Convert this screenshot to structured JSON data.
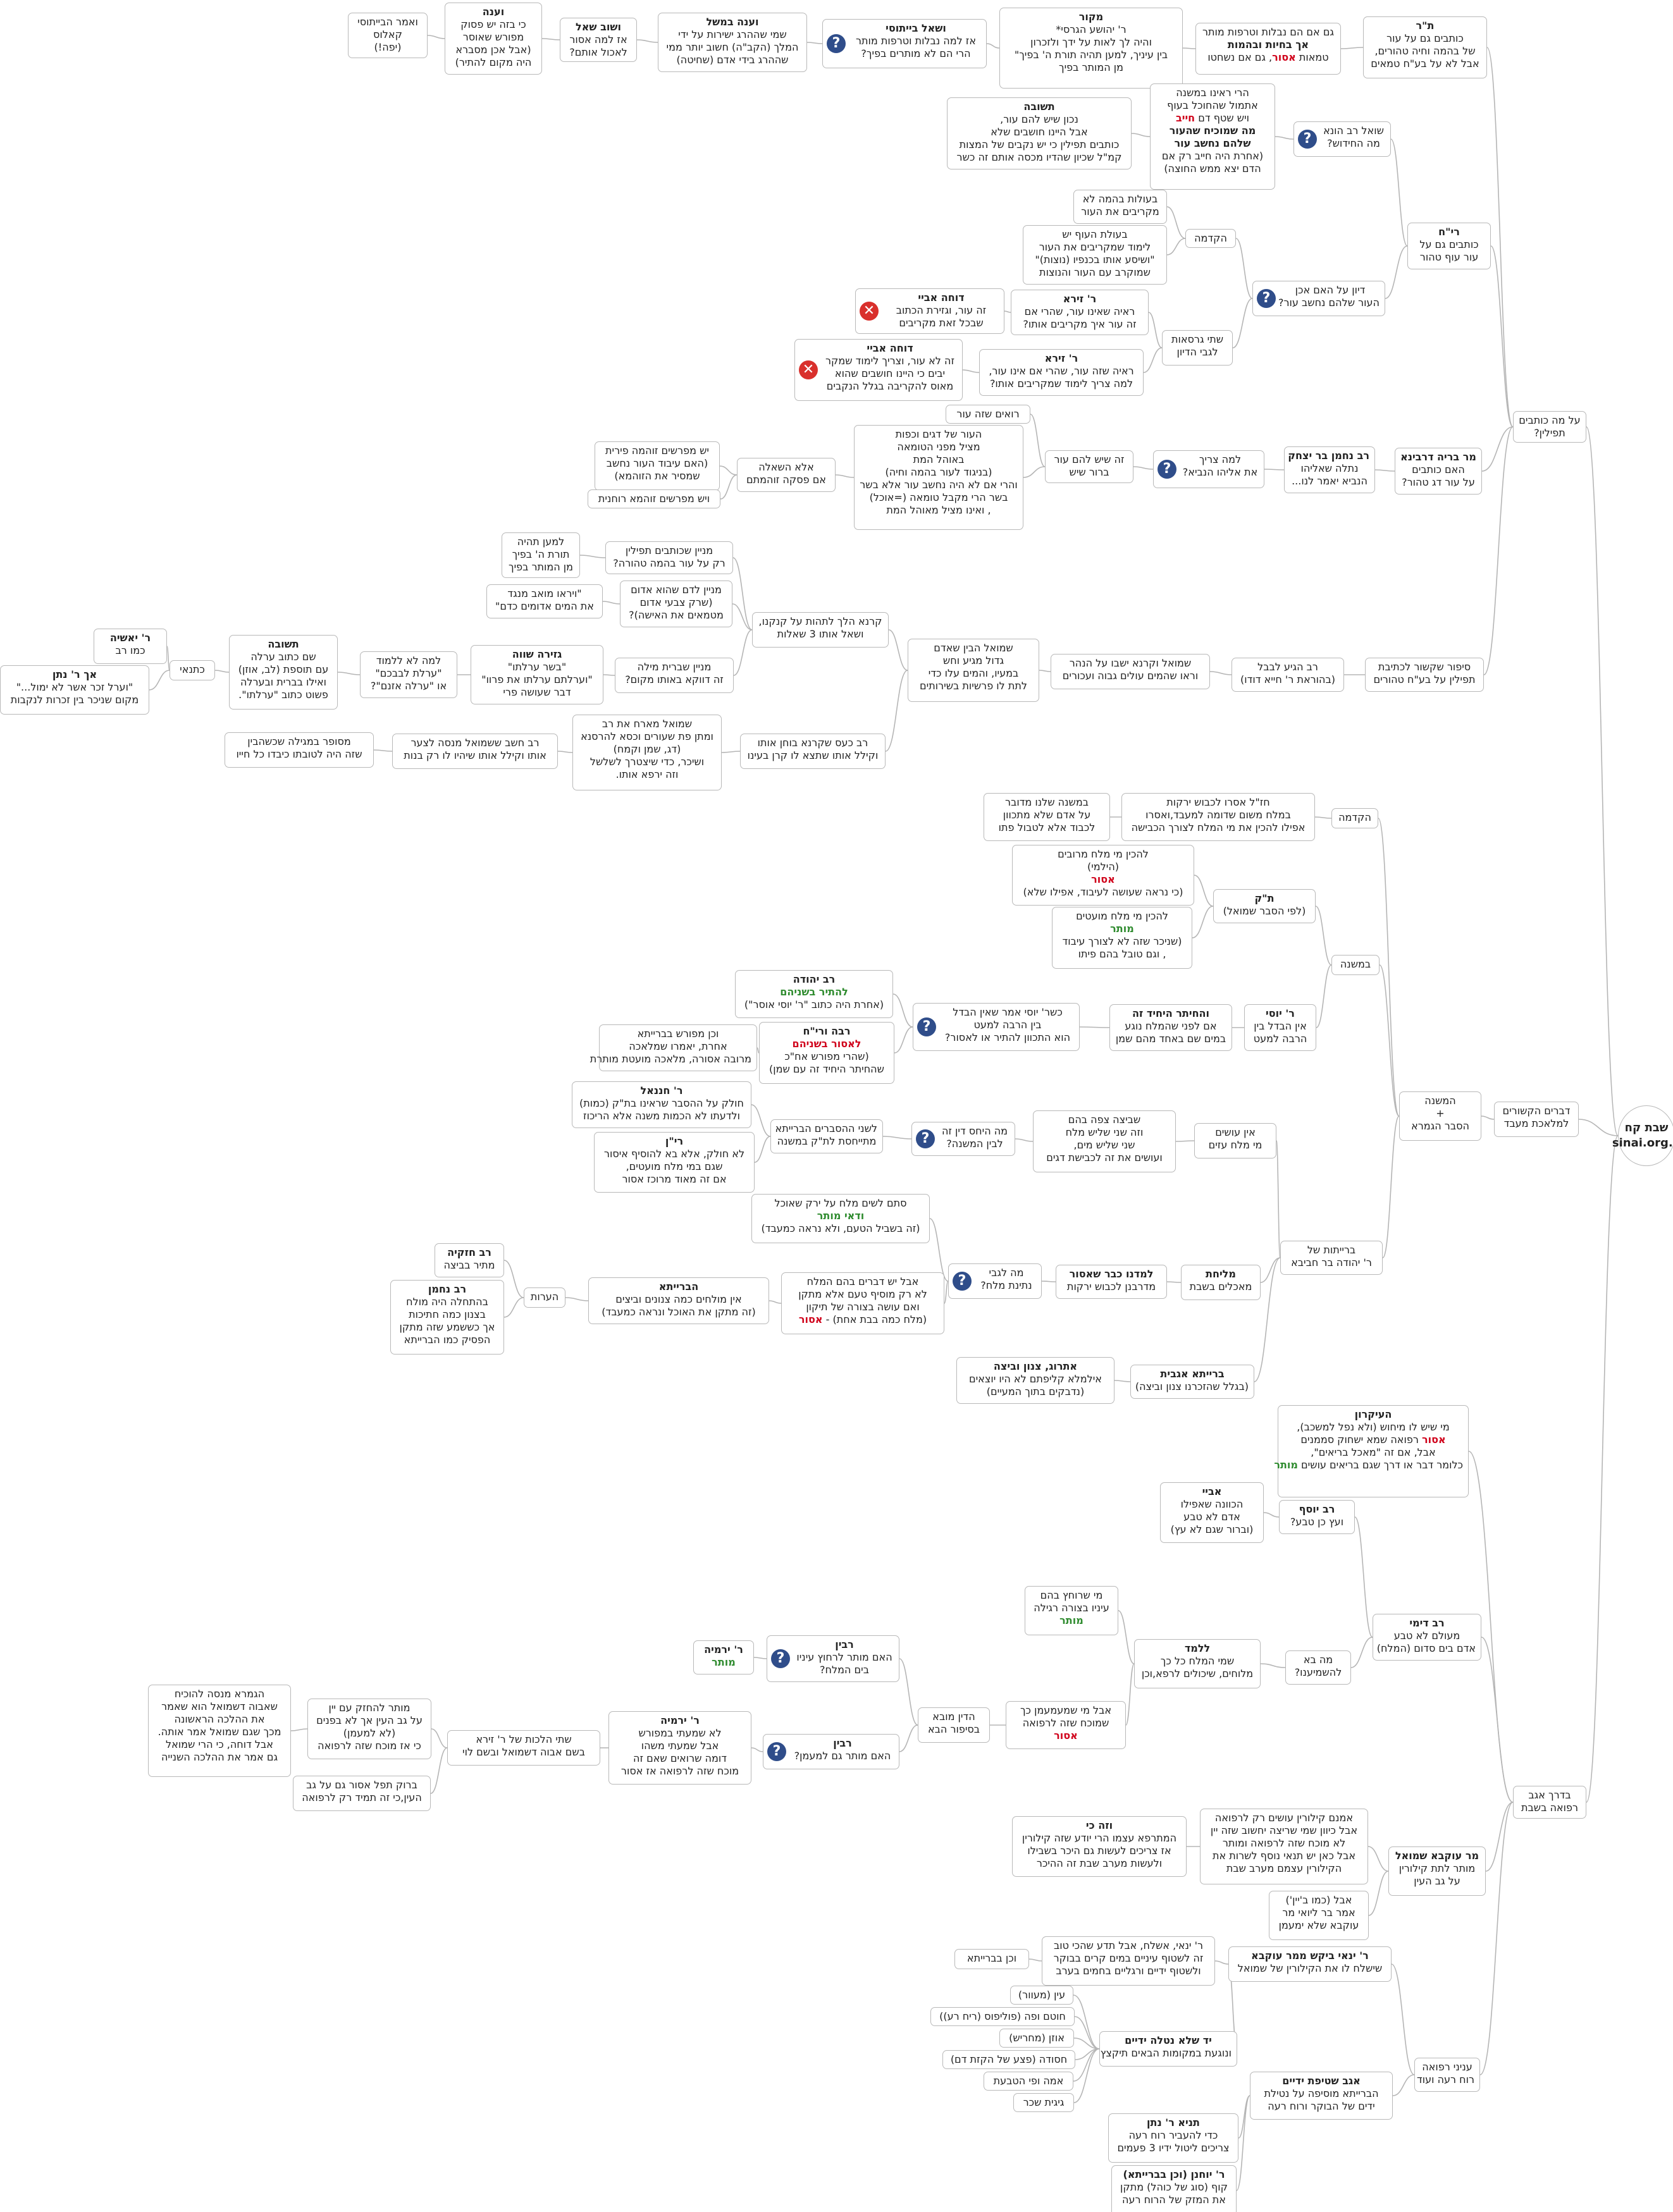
{
  "colors": {
    "line": "#b5b5b5",
    "border": "#b8b8b8",
    "question_badge": "#2f4d8a",
    "cross_badge": "#d9302c",
    "emphasis_red": "#d0021b",
    "emphasis_green": "#2e8b2e"
  },
  "icons": {
    "q": "question-mark-icon",
    "x": "cross-mark-icon"
  },
  "nodes": [
    {
      "id": "root",
      "lines": [
        "שבת קח",
        "sinai.org.il"
      ]
    },
    {
      "id": "a1",
      "lines": [
        "דברים הקשורים",
        "למלאכת מעבד"
      ]
    },
    {
      "id": "a2",
      "lines": [
        "על מה כותבים",
        "תפילין?"
      ]
    },
    {
      "id": "a3",
      "lines": [
        "בדרך אגב",
        "רפואה בשבת"
      ]
    },
    {
      "id": "b1",
      "lines": [
        "ת\"ר",
        "כותבים גם על עור",
        "של בהמה וחיה טהורים,",
        "אבל לא על בע\"ח טמאים"
      ]
    },
    {
      "id": "b2",
      "lines": [
        "גם אם הם נבלות וטרפות מותר",
        "אך בחיות ובהמות",
        "טמאות אסור, גם אם נשחטו"
      ]
    },
    {
      "id": "b3",
      "lines": [
        "מקור",
        "ר' יהושע הגרסי*",
        "והיה לך לאות על ידך ולזכרון",
        "בין עיניך, למען תהיה תורת ה' בפיך\"",
        "מן המותר בפיך"
      ]
    },
    {
      "id": "b4",
      "lines": [
        "ושאל בייתוסי",
        "אז למה נבלות וטרפות מותר",
        "הרי הם לא מותרים בפיך?"
      ]
    },
    {
      "id": "b5",
      "lines": [
        "וענה במשל",
        "שמי שההרג ישירות על ידי",
        "המלך (הקב\"ה) חשוב יותר ממי",
        "שההרג בידי אדם (שחיטה)"
      ]
    },
    {
      "id": "b6",
      "lines": [
        "ושוב שאל",
        "אז למה אסור",
        "לאכול אותם?"
      ]
    },
    {
      "id": "b7",
      "lines": [
        "וענה",
        "כי בזה יש פסוק",
        "מפורש שאוסר",
        "(אבל אכן מסברא",
        "היה מקום להתיר)"
      ]
    },
    {
      "id": "b8",
      "lines": [
        "ואמר הבייתוסי",
        "קאלוס",
        "(יפה!)"
      ]
    },
    {
      "id": "c1",
      "lines": [
        "רי\"ח",
        "כותבים גם על",
        "עור עוף טהור"
      ]
    },
    {
      "id": "c2",
      "lines": [
        "שואל רב הונא",
        "מה החידוש?"
      ]
    },
    {
      "id": "c3",
      "lines": [
        "הרי ראינו במשנה",
        "אתמול שהחוכל בעוף",
        "ויש שטף דם חייב",
        "מה שמוכיח שהעור",
        "שלהם נחשב עור",
        "(אחרת היה חייב רק אם",
        "הדם יצא ממש החוצה)"
      ]
    },
    {
      "id": "c4",
      "lines": [
        "תשובה",
        "נכון שיש להם עור,",
        "אבל היינו חושבים שלא",
        "כותבים תפילין כי יש נקבים של המצות",
        "קמ\"ל שכיון שהדיו מכסה אותם זה כשר"
      ]
    },
    {
      "id": "c5",
      "lines": [
        "דיון על האם אכן",
        "העור שלהם נחשב עור?"
      ]
    },
    {
      "id": "c6",
      "lines": [
        "הקדמה"
      ]
    },
    {
      "id": "c7",
      "lines": [
        "בעולות בהמה לא",
        "מקריבים את העור"
      ]
    },
    {
      "id": "c8",
      "lines": [
        "בעולת העוף יש",
        "לימוד שמקריבים את העור",
        "\"ושיסע אותו בכנפיו (נוצות)\"",
        "שמוקרב עם העור והנוצות"
      ]
    },
    {
      "id": "c9",
      "lines": [
        "שתי גרסאות",
        "לגבי הדיון"
      ]
    },
    {
      "id": "c10",
      "lines": [
        "ר' זירא",
        "ראיה שאינו עור, שהרי אם",
        "זה עור איך מקריבים אותו?"
      ]
    },
    {
      "id": "c11",
      "lines": [
        "דוחה אביי",
        "זה עור, וגזירת הכתוב",
        "שבכל זאת מקריבים"
      ]
    },
    {
      "id": "c12",
      "lines": [
        "ר' זירא",
        "ראיה שזה עור, שהרי אם אינו עור,",
        "למה צריך לימוד שמקריבים אותו?"
      ]
    },
    {
      "id": "c13",
      "lines": [
        "דוחה אביי",
        "זה לא עור, וצריך לימוד שמקר",
        "יבים כי היינו חושבים שהוא",
        "מאוס להקריבה בגלל הנקבים"
      ]
    },
    {
      "id": "d1",
      "lines": [
        "מר בריה דרבינא",
        "האם כותבים",
        "על עור דג טהור?"
      ]
    },
    {
      "id": "d2",
      "lines": [
        "רב נחמן בר יצחק",
        "נתלה שאליהו",
        "הנביא יאמר לנו..."
      ]
    },
    {
      "id": "d3",
      "lines": [
        "למה צריך",
        "את אליהו הנביא?"
      ]
    },
    {
      "id": "d4",
      "lines": [
        "זה שיש להם עור",
        "ברור שיש"
      ]
    },
    {
      "id": "d5",
      "lines": [
        "רואים שזה עור"
      ]
    },
    {
      "id": "d6",
      "lines": [
        "העור של דגים וכפות",
        "מציל מפני הטומאה",
        "באוהל המת",
        "(בניגוד לעור בהמה וחיה)",
        "והרי אם לא היה נחשב עור אלא בשר",
        "בשר הרי מקבל טומאה (=אוכל)",
        ", ואינו מציל מאוהל המת"
      ]
    },
    {
      "id": "d7",
      "lines": [
        "אלא השאלה",
        "אם פסקה זוהמתם"
      ]
    },
    {
      "id": "d8",
      "lines": [
        "יש מפרשים זוהמה פירית",
        "(האם עיבוד העור נחשב",
        "שמסיר את הזוהמא)"
      ]
    },
    {
      "id": "d9",
      "lines": [
        "ויש מפרשים זוהמא רוחנית"
      ]
    },
    {
      "id": "e1",
      "lines": [
        "סיפור שקשור לכתיבת",
        "תפילין על בע\"ח טהורים"
      ]
    },
    {
      "id": "e2",
      "lines": [
        "רב הגיע לבבל",
        "(בהוראת ר' חייא דודו)"
      ]
    },
    {
      "id": "e3",
      "lines": [
        "שמואל וקרנא ישבו על הנהר",
        "וראו שהמים עולים גבוה ועכורים"
      ]
    },
    {
      "id": "e4",
      "lines": [
        "שמואל הבין שאדם",
        "גדול מגיע וחש",
        "במעיו, והמים עלו כדי",
        "לתת לו פרשיות בשירותים"
      ]
    },
    {
      "id": "e5",
      "lines": [
        "קרנא הלך לתהות על קנקנו,",
        "ושאל אותו 3 שאלות"
      ]
    },
    {
      "id": "e6",
      "lines": [
        "רב כעס שקרנא בוחן אותו",
        "וקילל אותו שתצא לו קרן בעינו"
      ]
    },
    {
      "id": "e7",
      "lines": [
        "מניין שכותבים תפילין",
        "רק על עור בהמה טהורה?"
      ]
    },
    {
      "id": "e8",
      "lines": [
        "למען תהיה",
        "תורת ה' בפיך",
        "מן המותר בפיך"
      ]
    },
    {
      "id": "e9",
      "lines": [
        "מניין לדם שהוא אדום",
        "(שרק צבעי אדום",
        "מטמאים את האישה)?"
      ]
    },
    {
      "id": "e10",
      "lines": [
        "\"ויראו מואב מנגד",
        "את המים אדומים כדם\""
      ]
    },
    {
      "id": "e11",
      "lines": [
        "מניין שברית מילה",
        "זה דווקא באותו מקום?"
      ]
    },
    {
      "id": "e12",
      "lines": [
        "גזירה שווה",
        "\"בשר ערלתו\"",
        "\"וערלתם ערלתו את פרוו\"",
        "דבר שעושה פרי"
      ]
    },
    {
      "id": "e13",
      "lines": [
        "למה לא ללמוד",
        "\"ערלת לבבכם\"",
        "או \"ערלה אזנם\"?"
      ]
    },
    {
      "id": "e14",
      "lines": [
        "תשובה",
        "שם כתוב ערלה",
        "עם תוספת (לב, אוזן)",
        "ואילו בברית ובערלה",
        "פשוט כתוב \"ערלתו\"."
      ]
    },
    {
      "id": "e15",
      "lines": [
        "כתנאי"
      ]
    },
    {
      "id": "e16",
      "lines": [
        "ר' יאשיה",
        "כמו רב"
      ]
    },
    {
      "id": "e17",
      "lines": [
        "אך ר' נתן",
        "\"וערל זכר אשר לא ימול...\"",
        "מקום שניכר בין זכרות לנקבות"
      ]
    },
    {
      "id": "e18",
      "lines": [
        "שמואל מארח את רב",
        "ומתן פת שעורים וכסא להרסנא",
        "(דג, שמן וקמח)",
        "ושיכר, כדי שיצטרך לשלשל",
        "וזה ירפא אותו."
      ]
    },
    {
      "id": "e19",
      "lines": [
        "רב חשב ששמואל מנסה לצער",
        "אותו וקילל אותו שיהיו לו רק בנות"
      ]
    },
    {
      "id": "e20",
      "lines": [
        "מסופר במגילה שכשהבין",
        "שזה היה לטובתו כיבדו כל חייו"
      ]
    },
    {
      "id": "f1",
      "lines": [
        "המשנה",
        "+",
        "הסבר הגמרא"
      ]
    },
    {
      "id": "f2",
      "lines": [
        "הקדמה"
      ]
    },
    {
      "id": "f3",
      "lines": [
        "חז\"ל אסרו לכבוש ירקות",
        "במלח משום שדומה למעבד,ואסרו",
        "אפילו להכין את מי המלח לצורך הכבישה"
      ]
    },
    {
      "id": "f4",
      "lines": [
        "במשנה שלנו מדובר",
        "על אדם שלא מתכוון",
        "לכבוד אלא לטבול פתו"
      ]
    },
    {
      "id": "f5",
      "lines": [
        "במשנה"
      ]
    },
    {
      "id": "f6",
      "lines": [
        "ת\"ק",
        "(לפי הסבר שמואל)"
      ]
    },
    {
      "id": "f7",
      "lines": [
        "להכין מי מלח מרובים",
        "(הילמי)",
        "אסור",
        "(כי נראה שעושה לעיבוד, אפילו שלא)"
      ]
    },
    {
      "id": "f8",
      "lines": [
        "להכין מי מלח מועטים",
        "מותר",
        "(שניכר שזה לא לצורך עיבוד",
        ", וגם טובל בהם פיתו"
      ]
    },
    {
      "id": "f9",
      "lines": [
        "ר' יוסי",
        "אין הבדל בין",
        "הרבה למעט"
      ]
    },
    {
      "id": "f10",
      "lines": [
        "והחיתר היחיד זה",
        "אם לפני שהמלח נוגע",
        "במים שם באחד מהם שמן"
      ]
    },
    {
      "id": "f11",
      "lines": [
        "כשר' יוסי אמר שאין הבדל",
        "בין הרבה למעט",
        "הוא התכוון להתיר או לאסור?"
      ]
    },
    {
      "id": "f12",
      "lines": [
        "רב יהודה",
        "להתיר בשניהם",
        "(אחרת היה כתוב \"ר' יוסי אוסר\")"
      ]
    },
    {
      "id": "f13",
      "lines": [
        "רבה ורי\"ח",
        "לאסור בשניהם",
        "(שהרי מפורש אח\"כ",
        "שהחיתר היחיד זה עם שמן)"
      ]
    },
    {
      "id": "f14",
      "lines": [
        "וכן מפורש בברייתא",
        "אחרת, יאמרו שמלאכה",
        "מרובה אסורה, מלאכה מועטת מותרת"
      ]
    },
    {
      "id": "f15",
      "lines": [
        "אין עושים",
        "מי מלח עזים"
      ]
    },
    {
      "id": "f16",
      "lines": [
        "שביצה צפה בהם",
        "וזה שני שליש מלח",
        "שני שליש מים,",
        "ועושים את זה לכבישת דגים"
      ]
    },
    {
      "id": "f17",
      "lines": [
        "מה היחס דין זה",
        "לבין המשנה?"
      ]
    },
    {
      "id": "f18",
      "lines": [
        "לשני ההסברים הברייתא",
        "מתייחסת לת\"ק במשנה"
      ]
    },
    {
      "id": "f19",
      "lines": [
        "ר' חננאל",
        "חולק על ההסבר שראינו בת\"ק (כמות)",
        "ולדעתו לא הכמות משנה אלא הריכוז"
      ]
    },
    {
      "id": "f20",
      "lines": [
        "רי\"ן",
        "לא חולק, אלא בא להוסיף איסור",
        "שגם במי מלח מועטים,",
        "אם זה מאוד מרוכז אסור"
      ]
    },
    {
      "id": "f21",
      "lines": [
        "ברייתות של",
        "ר' יהודה בר חביבא"
      ]
    },
    {
      "id": "f22",
      "lines": [
        "מליחת",
        "מאכלים בשבת"
      ]
    },
    {
      "id": "f23",
      "lines": [
        "למדנו כבר שאסור",
        "מדרבנן לכבוש ירקות"
      ]
    },
    {
      "id": "f24",
      "lines": [
        "מה לגבי",
        "נתינת מלח?"
      ]
    },
    {
      "id": "f25",
      "lines": [
        "סתם לשים מלח על ירק שאוכל",
        "ודאי מותר",
        "(זה בשביל הטעם, ולא נראה כמעבד)"
      ]
    },
    {
      "id": "f26",
      "lines": [
        "אבל יש דברים בהם המלח",
        "לא רק מוסיף טעם אלא מתקן",
        "ואם עושה בצורה של תיקון",
        "(מלח כמה בבת אחת) - אסור"
      ]
    },
    {
      "id": "f27",
      "lines": [
        "הברייתא",
        "אין מולחים כמה צנונים וביצים",
        "(זה מתקן את האוכל ונראה כמעבד)"
      ]
    },
    {
      "id": "f28",
      "lines": [
        "הערות"
      ]
    },
    {
      "id": "f29",
      "lines": [
        "רב חזקיה",
        "מתיר בביצה"
      ]
    },
    {
      "id": "f30",
      "lines": [
        "רב נחמן",
        "בהתחלה היה מולח",
        "בצנון כמה חתיכות",
        "אך כששמע שזה מתקן",
        "הפסיק כמו הברייתא"
      ]
    },
    {
      "id": "f31",
      "lines": [
        "ברייתא אגבית",
        "(בגלל שהזכרנו צנון וביצה)"
      ]
    },
    {
      "id": "f32",
      "lines": [
        "אתרוג, צנון וביצה",
        "אילמלא קליפתם לא היו יוצאים",
        "(נדבקים בתוך המעיים)"
      ]
    },
    {
      "id": "g1",
      "lines": [
        "העיקרון",
        "מי שיש לו מיחוש (ולא נפל למשכב),",
        "אסור רפואה שמא ישחוק סממנים",
        "אבל, אם זה \"מאכל בריאים\",",
        "כלומר דבר או דרך שגם בריאים עושים מותר"
      ]
    },
    {
      "id": "g2",
      "lines": [
        "רב יוסף",
        "ועץ כן טבע?"
      ]
    },
    {
      "id": "g3",
      "lines": [
        "אביי",
        "הכוונה שאפילו",
        "אדם לא טבע",
        "(וברור שגם לא עץ)"
      ]
    },
    {
      "id": "g4",
      "lines": [
        "רב דימי",
        "מעולם לא טבע",
        "אדם בים סדום (המלח)"
      ]
    },
    {
      "id": "g5",
      "lines": [
        "מה בא",
        "להשמיענו?"
      ]
    },
    {
      "id": "g6",
      "lines": [
        "ללמד",
        "שמי המלח כל כך",
        "מלוחים, שיכולים לרפא,וכן"
      ]
    },
    {
      "id": "g7",
      "lines": [
        "מי שרוחץ בהם",
        "עיניו בצורה רגילה",
        "מותר"
      ]
    },
    {
      "id": "g8",
      "lines": [
        "אבל מי שמעמעמן כך",
        "שמוכח שזה לרפואה",
        "אסור"
      ]
    },
    {
      "id": "g9",
      "lines": [
        "הדין מובא",
        "בסיפור הבא"
      ]
    },
    {
      "id": "g10",
      "lines": [
        "רבין",
        "האם מותר לרחוץ עיניו",
        "בים המלח?"
      ]
    },
    {
      "id": "g11",
      "lines": [
        "ר' ירמיה",
        "מותר"
      ]
    },
    {
      "id": "g12",
      "lines": [
        "רבין",
        "האם מותר גם למעמן?"
      ]
    },
    {
      "id": "g13",
      "lines": [
        "ר' ירמיה",
        "לא שמעתי במפורש",
        "אבל שמעתי משהו",
        "דומה שרואים שאם זה",
        "מוכח שזה לרפואה אז אסור"
      ]
    },
    {
      "id": "g14",
      "lines": [
        "שתי הלכות של ר' זירא",
        "בשם אבוה דשמואל ובשם לוי"
      ]
    },
    {
      "id": "g15",
      "lines": [
        "מותר להחזק עם יין",
        "על גב העין אך לא בפנים",
        "(לא למעמן)",
        "כי אז מוכח שזה לרפואה"
      ]
    },
    {
      "id": "g16",
      "lines": [
        "הגמרא מנסה להוכיח",
        "שאבוה דשמואל הוא שאמר",
        "את ההלכה הראשונה",
        "מכך שגם שמואל אמר אותה.",
        "אבל דוחה, כי הרי שמואל",
        "גם אמר את ההלכה השנייה"
      ]
    },
    {
      "id": "g17",
      "lines": [
        "ברוק תפל אסור גם על גב",
        "העין,כי זה תמיד רק לרפואה"
      ]
    },
    {
      "id": "g18",
      "lines": [
        "מר עוקבא שמואל",
        "מותר לתת קילורין",
        "על גב העין"
      ]
    },
    {
      "id": "g19",
      "lines": [
        "אמנם קילורין עושים רק לרפואה",
        "אבל כיוון שמי שריצה יחשוב שזה יין",
        "לא מוכח שזה לרפואה ומותר",
        "אבל כאן יש תנאי נוסף לשרות את",
        "הקילורין עצמם מערב שבת"
      ]
    },
    {
      "id": "g20",
      "lines": [
        "וזה כי",
        "המתרפא עצמו הרי יודע שזה קילורין",
        "אז צריכים לעשות גם היכר בשבילו",
        "ולעשות מערב שבת זה ההיכר"
      ]
    },
    {
      "id": "g21",
      "lines": [
        "אבל (כמו ב'יין')",
        "אמר בר ליואי מר",
        "עוקבא שלא ימעמן"
      ]
    },
    {
      "id": "g22",
      "lines": [
        "עניני רפואה",
        "רוח רעה ועוד"
      ]
    },
    {
      "id": "g23",
      "lines": [
        "ר' ינאי ביקש ממר עוקבא",
        "שישלח לו את הקילורין של שמואל"
      ]
    },
    {
      "id": "g24",
      "lines": [
        "ר' ינאי, אשלח, אבל תדע שהכי טוב",
        "זה לשטוף עיניים במים קרים בבוקר",
        "ולשטוף ידיים ורגליים בחמים בערב"
      ]
    },
    {
      "id": "g25",
      "lines": [
        "וכן בברייתא"
      ]
    },
    {
      "id": "g26",
      "lines": [
        "יד שלא נטלה ידיים",
        "ונוגעת במקומות הבאים תיקצץ"
      ]
    },
    {
      "id": "g27",
      "lines": [
        "עין (מעוור)"
      ]
    },
    {
      "id": "g28",
      "lines": [
        "חוטם ופה (פוליפוס (ריח רע))"
      ]
    },
    {
      "id": "g29",
      "lines": [
        "אוזן (מחריש)"
      ]
    },
    {
      "id": "g30",
      "lines": [
        "חסודה (פצע של הקזת דם)"
      ]
    },
    {
      "id": "g31",
      "lines": [
        "אמה ופי הטבעת"
      ]
    },
    {
      "id": "g32",
      "lines": [
        "גיגית שכר"
      ]
    },
    {
      "id": "g33",
      "lines": [
        "אגב שטיפת ידיים",
        "הברייתא מוסיפה על נטילת",
        "ידים של הבוקר ורוח רעה"
      ]
    },
    {
      "id": "g34",
      "lines": [
        "תניא ר' נתן",
        "כדי להעביר רוח רעה",
        "צריכים ליטול ידיו 3 פעמים"
      ]
    },
    {
      "id": "g35",
      "lines": [
        "ר' יוחנן (וכן בברייתא)",
        "קוף (סוג של כוהל) מתקן",
        "את המזק של הרוח רעה"
      ]
    }
  ]
}
